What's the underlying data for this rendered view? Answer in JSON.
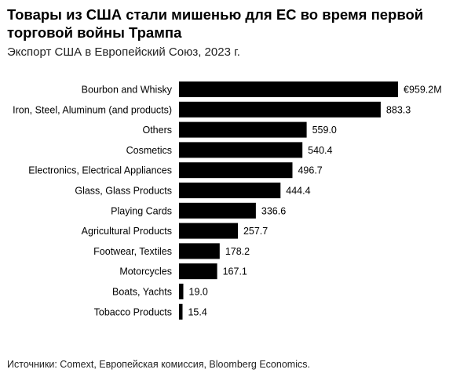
{
  "title": "Товары из США стали мишенью для ЕС во время первой торговой войны Трампа",
  "subtitle": "Экспорт США в Европейский Союз, 2023 г.",
  "source": "Источники: Comext, Европейская комиссия, Bloomberg Economics.",
  "colors": {
    "bar": "#000000",
    "text": "#000000",
    "background": "#ffffff"
  },
  "chart_data": {
    "type": "bar",
    "orientation": "horizontal",
    "categories": [
      "Bourbon and Whisky",
      "Iron, Steel, Aluminum (and products)",
      "Others",
      "Cosmetics",
      "Electronics, Electrical Appliances",
      "Glass, Glass Products",
      "Playing Cards",
      "Agricultural Products",
      "Footwear, Textiles",
      "Motorcycles",
      "Boats, Yachts",
      "Tobacco Products"
    ],
    "values": [
      959.2,
      883.3,
      559.0,
      540.4,
      496.7,
      444.4,
      336.6,
      257.7,
      178.2,
      167.1,
      19.0,
      15.4
    ],
    "data_labels": [
      "€959.2M",
      "883.3",
      "559.0",
      "540.4",
      "496.7",
      "444.4",
      "336.6",
      "257.7",
      "178.2",
      "167.1",
      "19.0",
      "15.4"
    ],
    "xlim": [
      0,
      959.2
    ],
    "grid": false,
    "legend": "none"
  }
}
